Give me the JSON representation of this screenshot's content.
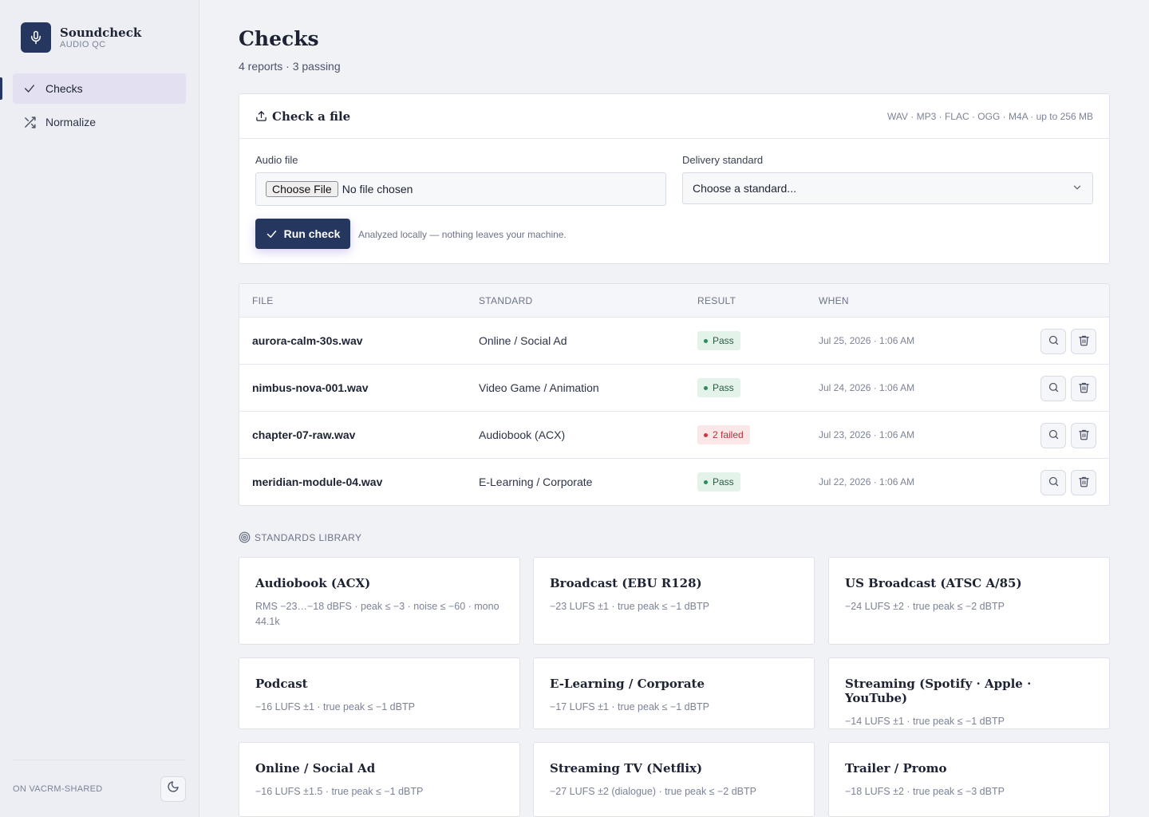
{
  "brand": {
    "name": "Soundcheck",
    "subtitle": "AUDIO QC",
    "icon": "microphone-icon"
  },
  "nav": {
    "items": [
      {
        "label": "Checks",
        "icon": "check-icon",
        "active": true
      },
      {
        "label": "Normalize",
        "icon": "shuffle-icon",
        "active": false
      }
    ]
  },
  "sidebar_footer": {
    "label": "ON VACRM-SHARED",
    "theme_icon": "moon-icon"
  },
  "page": {
    "title": "Checks",
    "subtitle": "4 reports · 3 passing"
  },
  "upload": {
    "title": "Check a file",
    "icon": "upload-icon",
    "formats": "WAV · MP3 · FLAC · OGG · M4A · up to 256 MB",
    "file_label": "Audio file",
    "choose_button": "Choose File",
    "file_status": "No file chosen",
    "standard_label": "Delivery standard",
    "standard_placeholder": "Choose a standard...",
    "run_button": "Run check",
    "run_note": "Analyzed locally — nothing leaves your machine."
  },
  "table": {
    "headers": {
      "file": "FILE",
      "standard": "STANDARD",
      "result": "RESULT",
      "when": "WHEN"
    },
    "rows": [
      {
        "file": "aurora-calm-30s.wav",
        "standard": "Online / Social Ad",
        "result": "Pass",
        "status": "pass",
        "when": "Jul 25, 2026 · 1:06 AM"
      },
      {
        "file": "nimbus-nova-001.wav",
        "standard": "Video Game / Animation",
        "result": "Pass",
        "status": "pass",
        "when": "Jul 24, 2026 · 1:06 AM"
      },
      {
        "file": "chapter-07-raw.wav",
        "standard": "Audiobook (ACX)",
        "result": "2 failed",
        "status": "fail",
        "when": "Jul 23, 2026 · 1:06 AM"
      },
      {
        "file": "meridian-module-04.wav",
        "standard": "E-Learning / Corporate",
        "result": "Pass",
        "status": "pass",
        "when": "Jul 22, 2026 · 1:06 AM"
      }
    ]
  },
  "library": {
    "title": "STANDARDS LIBRARY",
    "icon": "target-icon",
    "standards": [
      {
        "name": "Audiobook (ACX)",
        "desc": "RMS −23…−18 dBFS · peak ≤ −3 · noise ≤ −60 · mono 44.1k"
      },
      {
        "name": "Broadcast (EBU R128)",
        "desc": "−23 LUFS ±1 · true peak ≤ −1 dBTP"
      },
      {
        "name": "US Broadcast (ATSC A/85)",
        "desc": "−24 LUFS ±2 · true peak ≤ −2 dBTP"
      },
      {
        "name": "Podcast",
        "desc": "−16 LUFS ±1 · true peak ≤ −1 dBTP"
      },
      {
        "name": "E-Learning / Corporate",
        "desc": "−17 LUFS ±1 · true peak ≤ −1 dBTP"
      },
      {
        "name": "Streaming (Spotify · Apple · YouTube)",
        "desc": "−14 LUFS ±1 · true peak ≤ −1 dBTP"
      },
      {
        "name": "Online / Social Ad",
        "desc": "−16 LUFS ±1.5 · true peak ≤ −1 dBTP"
      },
      {
        "name": "Streaming TV (Netflix)",
        "desc": "−27 LUFS ±2 (dialogue) · true peak ≤ −2 dBTP"
      },
      {
        "name": "Trailer / Promo",
        "desc": "−18 LUFS ±2 · true peak ≤ −3 dBTP"
      }
    ]
  },
  "colors": {
    "accent": "#25375f",
    "pass": "#2f8a5b",
    "fail": "#c23a47",
    "active_nav": "#e2e0f1"
  }
}
